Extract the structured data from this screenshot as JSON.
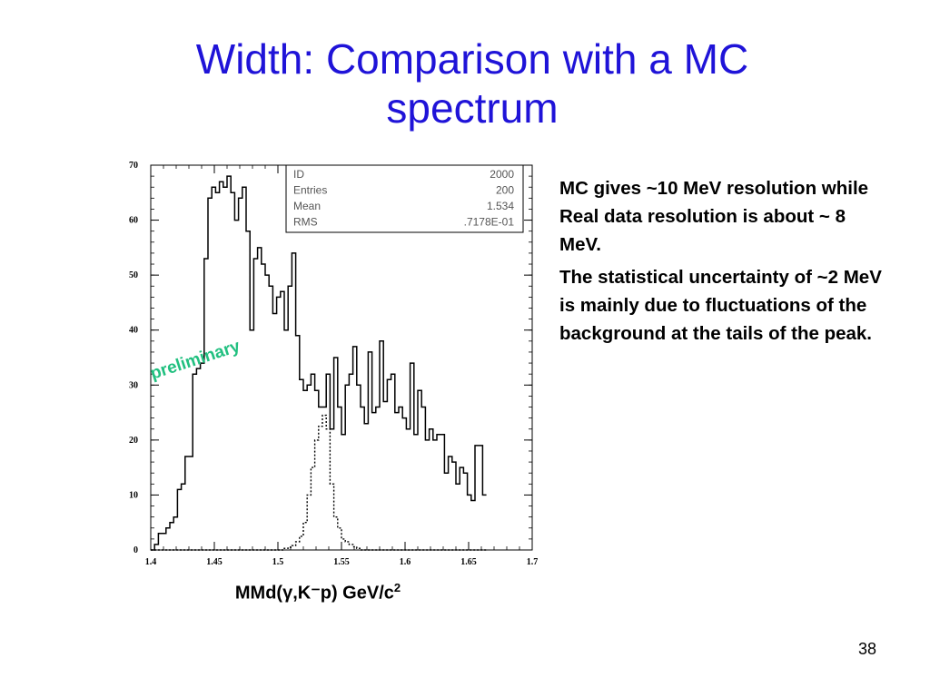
{
  "slide": {
    "title_line1": "Width: Comparison with a MC",
    "title_line2": "spectrum",
    "page_number": "38",
    "text_color": "#000000",
    "title_color": "#1f13d8"
  },
  "side_text": {
    "paragraph1": "MC gives ~10 MeV resolution while Real data resolution is about ~ 8 MeV.",
    "paragraph2": "The statistical uncertainty  of ~2 MeV is mainly due to fluctuations of the background at the tails of the peak."
  },
  "x_caption": {
    "main": "MMd(γ,K⁻p) GeV/c",
    "superscript": "2"
  },
  "chart_data": {
    "type": "histogram",
    "watermark": "preliminary",
    "watermark_color": "#22c080",
    "xlim": [
      1.4,
      1.7
    ],
    "ylim": [
      0,
      70
    ],
    "x_ticks": [
      "1.4",
      "1.45",
      "1.5",
      "1.55",
      "1.6",
      "1.65",
      "1.7"
    ],
    "x_tick_values": [
      1.4,
      1.45,
      1.5,
      1.55,
      1.6,
      1.65,
      1.7
    ],
    "y_ticks": [
      "0",
      "10",
      "20",
      "30",
      "40",
      "50",
      "60",
      "70"
    ],
    "y_tick_values": [
      0,
      10,
      20,
      30,
      40,
      50,
      60,
      70
    ],
    "stats_box": [
      {
        "label": "ID",
        "value": "2000"
      },
      {
        "label": "Entries",
        "value": "200"
      },
      {
        "label": "Mean",
        "value": "1.534"
      },
      {
        "label": "RMS",
        "value": ".7178E-01"
      }
    ],
    "bin_start": 1.4,
    "bin_width": 0.003,
    "series": [
      {
        "style": "solid",
        "values": [
          0,
          1,
          3,
          3,
          4,
          5,
          6,
          11,
          12,
          17,
          17,
          32,
          33,
          34,
          53,
          64,
          66,
          65,
          67,
          66,
          68,
          65,
          60,
          64,
          66,
          58,
          40,
          53,
          55,
          52,
          50,
          48,
          43,
          46,
          47,
          40,
          48,
          54,
          39,
          31,
          29,
          30,
          32,
          29,
          26,
          26,
          32,
          22,
          35,
          26,
          21,
          30,
          32,
          37,
          30,
          26,
          23,
          36,
          25,
          26,
          38,
          27,
          31,
          32,
          25,
          26,
          24,
          22,
          34,
          21,
          29,
          26,
          20,
          22,
          20,
          21,
          21,
          14,
          17,
          16,
          12,
          15,
          14,
          10,
          9,
          19,
          19,
          10
        ]
      },
      {
        "style": "dotted",
        "values": [
          0,
          0,
          0,
          0,
          0,
          0,
          0,
          0,
          0,
          0,
          0,
          0,
          0,
          0,
          0,
          0,
          0,
          0,
          0,
          0,
          0,
          0,
          0,
          0,
          0,
          0,
          0,
          0,
          0,
          0,
          0,
          0,
          0,
          0,
          0,
          0.3,
          0.5,
          0.8,
          1.5,
          2.5,
          5,
          10,
          15,
          20,
          22.5,
          24.5,
          22,
          12,
          6,
          4,
          2,
          1.5,
          1,
          0.6,
          0.3,
          0,
          0,
          0,
          0,
          0,
          0,
          0,
          0,
          0,
          0,
          0,
          0,
          0,
          0,
          0,
          0,
          0,
          0,
          0,
          0,
          0,
          0,
          0,
          0,
          0,
          0,
          0,
          0,
          0,
          0,
          0,
          0,
          0
        ]
      }
    ]
  }
}
